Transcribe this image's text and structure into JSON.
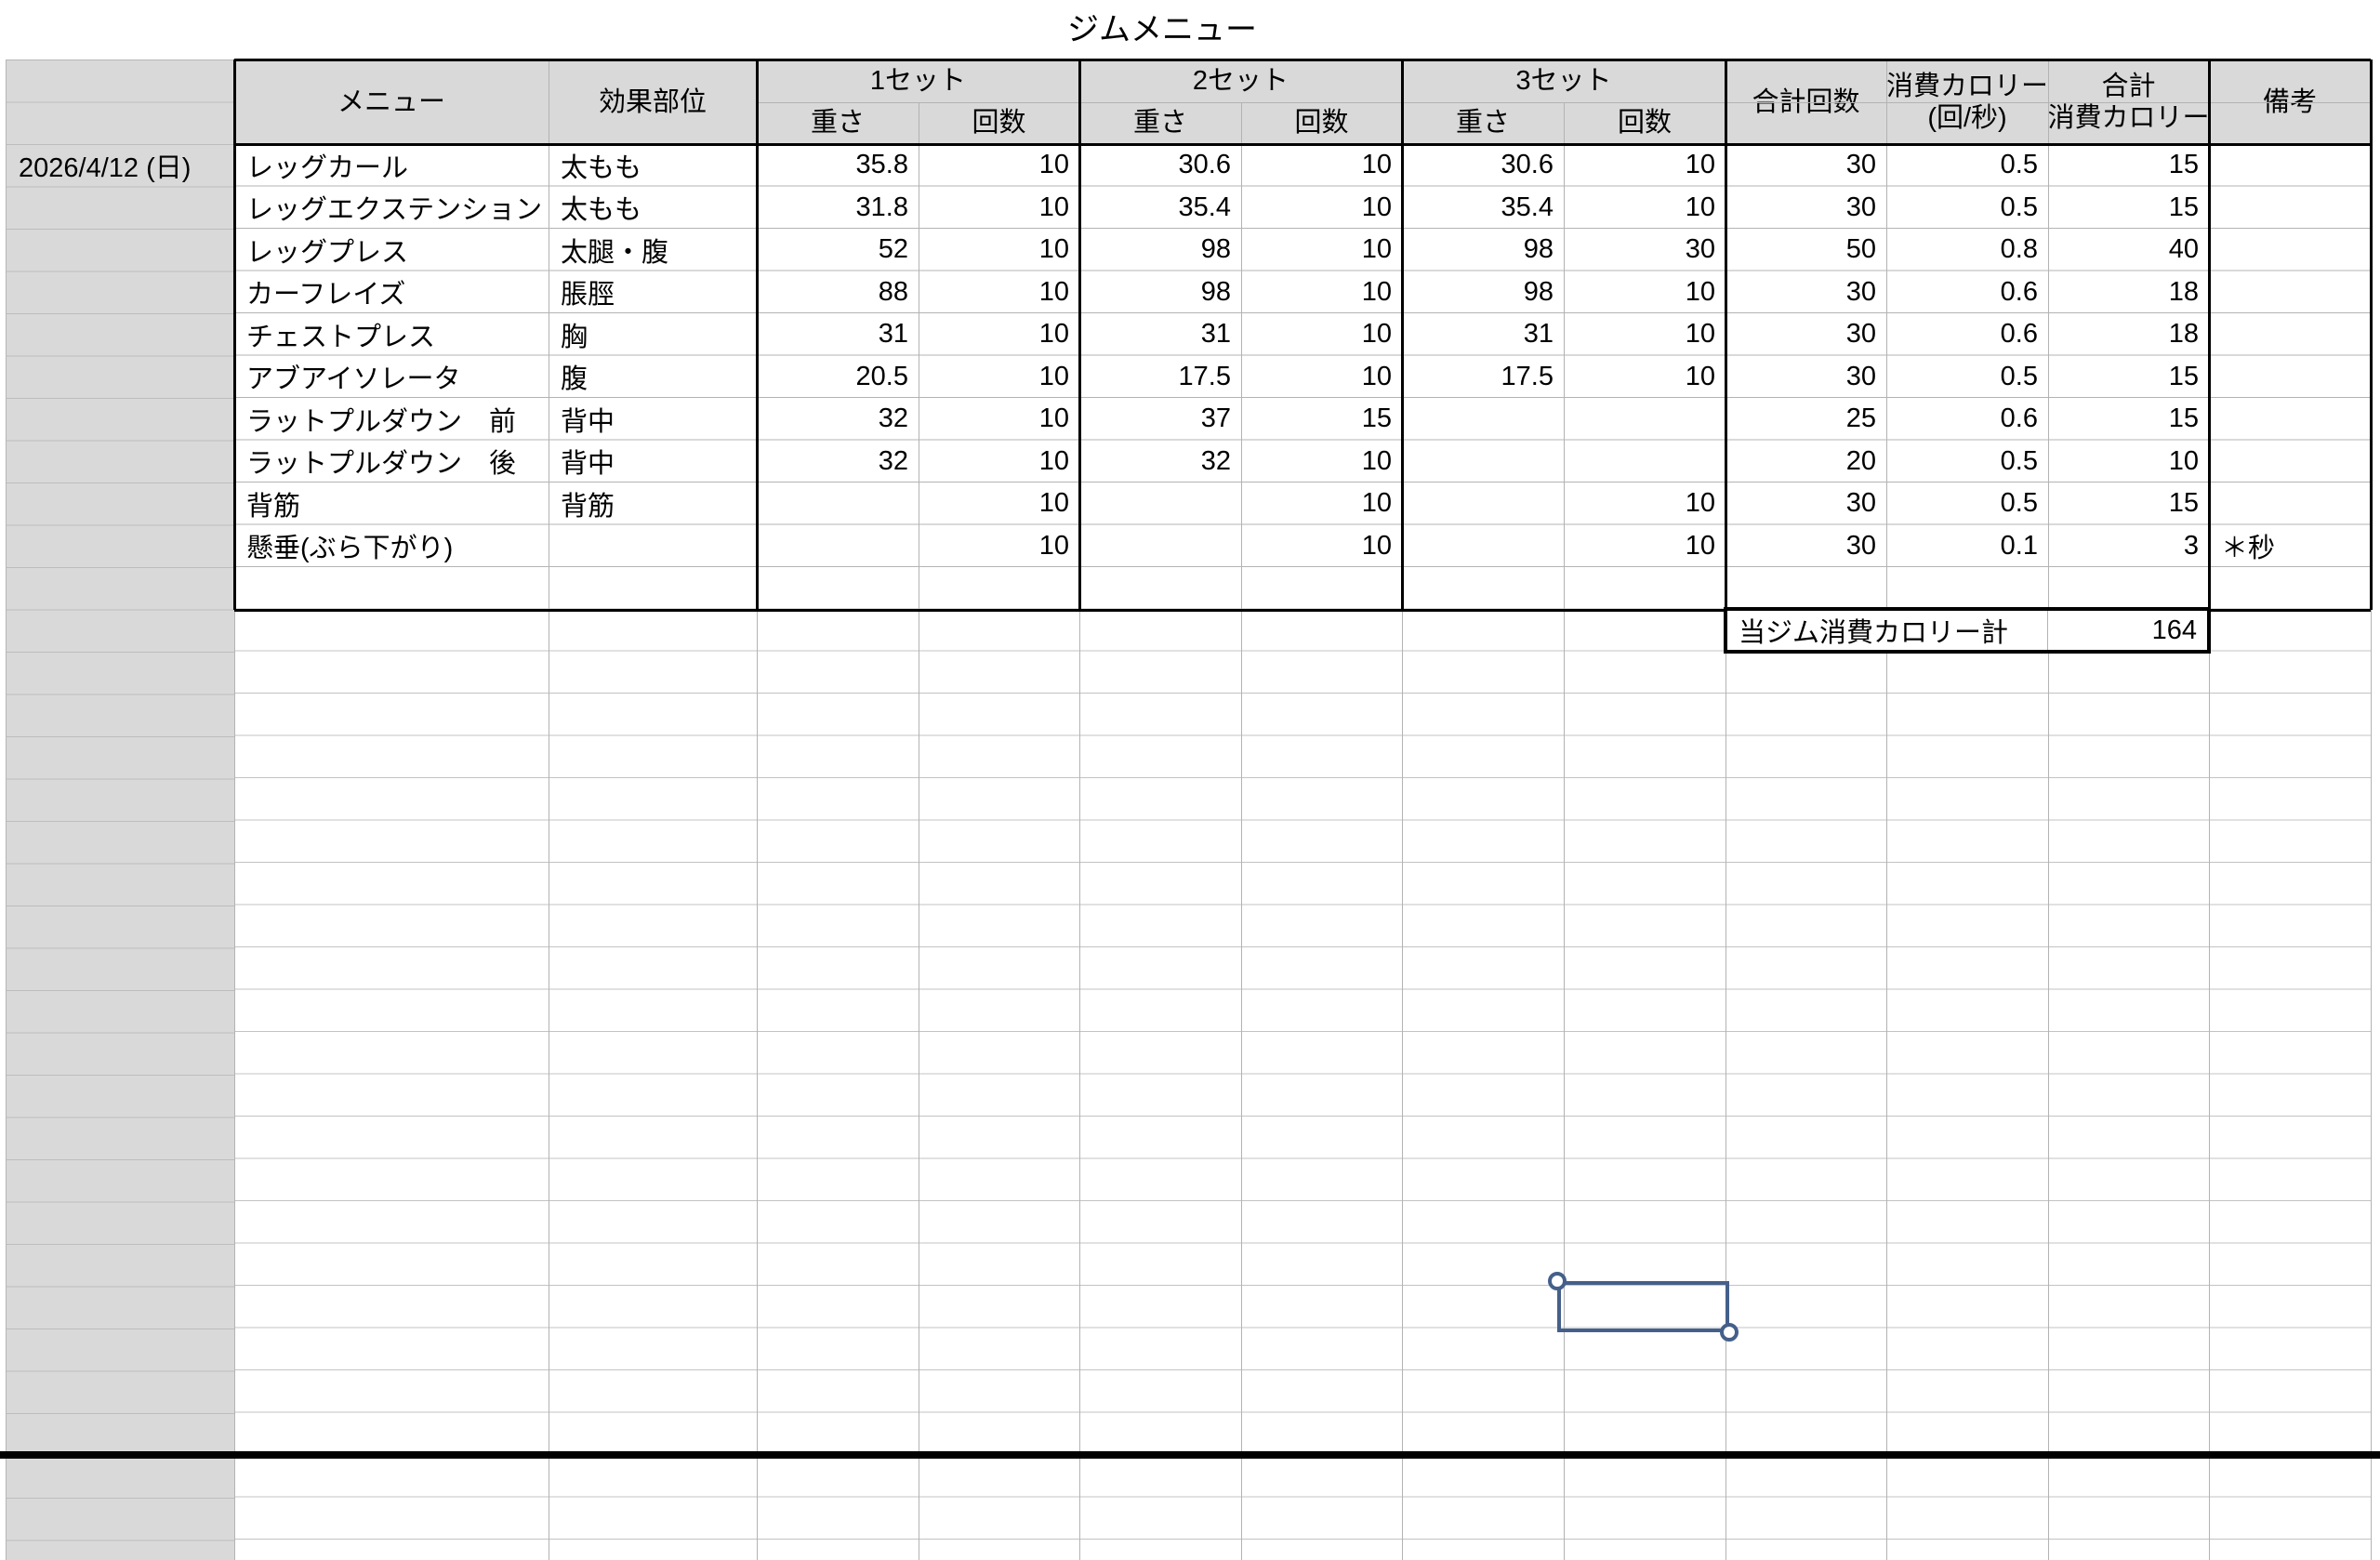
{
  "title": "ジムメニュー",
  "sheet": {
    "date": "2026/4/12 (日)"
  },
  "header": {
    "menu": "メニュー",
    "body_part": "効果部位",
    "sets": [
      "1セット",
      "2セット",
      "3セット"
    ],
    "weight": "重さ",
    "reps": "回数",
    "total_reps": "合計回数",
    "cal_rate": [
      "消費カロリー",
      "(回/秒)"
    ],
    "total_cal": [
      "合計",
      "消費カロリー"
    ],
    "notes": "備考"
  },
  "rows": [
    {
      "menu": "レッグカール",
      "part": "太もも",
      "s1w": "35.8",
      "s1r": "10",
      "s2w": "30.6",
      "s2r": "10",
      "s3w": "30.6",
      "s3r": "10",
      "total": "30",
      "rate": "0.5",
      "cal": "15",
      "note": ""
    },
    {
      "menu": "レッグエクステンション",
      "part": "太もも",
      "s1w": "31.8",
      "s1r": "10",
      "s2w": "35.4",
      "s2r": "10",
      "s3w": "35.4",
      "s3r": "10",
      "total": "30",
      "rate": "0.5",
      "cal": "15",
      "note": ""
    },
    {
      "menu": "レッグプレス",
      "part": "太腿・腹",
      "s1w": "52",
      "s1r": "10",
      "s2w": "98",
      "s2r": "10",
      "s3w": "98",
      "s3r": "30",
      "total": "50",
      "rate": "0.8",
      "cal": "40",
      "note": ""
    },
    {
      "menu": "カーフレイズ",
      "part": "脹脛",
      "s1w": "88",
      "s1r": "10",
      "s2w": "98",
      "s2r": "10",
      "s3w": "98",
      "s3r": "10",
      "total": "30",
      "rate": "0.6",
      "cal": "18",
      "note": ""
    },
    {
      "menu": "チェストプレス",
      "part": "胸",
      "s1w": "31",
      "s1r": "10",
      "s2w": "31",
      "s2r": "10",
      "s3w": "31",
      "s3r": "10",
      "total": "30",
      "rate": "0.6",
      "cal": "18",
      "note": ""
    },
    {
      "menu": "アブアイソレータ",
      "part": "腹",
      "s1w": "20.5",
      "s1r": "10",
      "s2w": "17.5",
      "s2r": "10",
      "s3w": "17.5",
      "s3r": "10",
      "total": "30",
      "rate": "0.5",
      "cal": "15",
      "note": ""
    },
    {
      "menu": "ラットプルダウン　前",
      "part": "背中",
      "s1w": "32",
      "s1r": "10",
      "s2w": "37",
      "s2r": "15",
      "s3w": "",
      "s3r": "",
      "total": "25",
      "rate": "0.6",
      "cal": "15",
      "note": ""
    },
    {
      "menu": "ラットプルダウン　後",
      "part": "背中",
      "s1w": "32",
      "s1r": "10",
      "s2w": "32",
      "s2r": "10",
      "s3w": "",
      "s3r": "",
      "total": "20",
      "rate": "0.5",
      "cal": "10",
      "note": ""
    },
    {
      "menu": "背筋",
      "part": "背筋",
      "s1w": "",
      "s1r": "10",
      "s2w": "",
      "s2r": "10",
      "s3w": "",
      "s3r": "10",
      "total": "30",
      "rate": "0.5",
      "cal": "15",
      "note": ""
    },
    {
      "menu": "懸垂(ぶら下がり)",
      "part": "",
      "s1w": "",
      "s1r": "10",
      "s2w": "",
      "s2r": "10",
      "s3w": "",
      "s3r": "10",
      "total": "30",
      "rate": "0.1",
      "cal": "3",
      "note": "＊秒"
    }
  ],
  "summary": {
    "label": "当ジム消費カロリー計",
    "value": "164"
  },
  "colors": {
    "header_fill": "#d9d9d9",
    "grid_line": "#b3b3b3",
    "thick_border": "#000000",
    "selection_blue": "#44608a"
  }
}
